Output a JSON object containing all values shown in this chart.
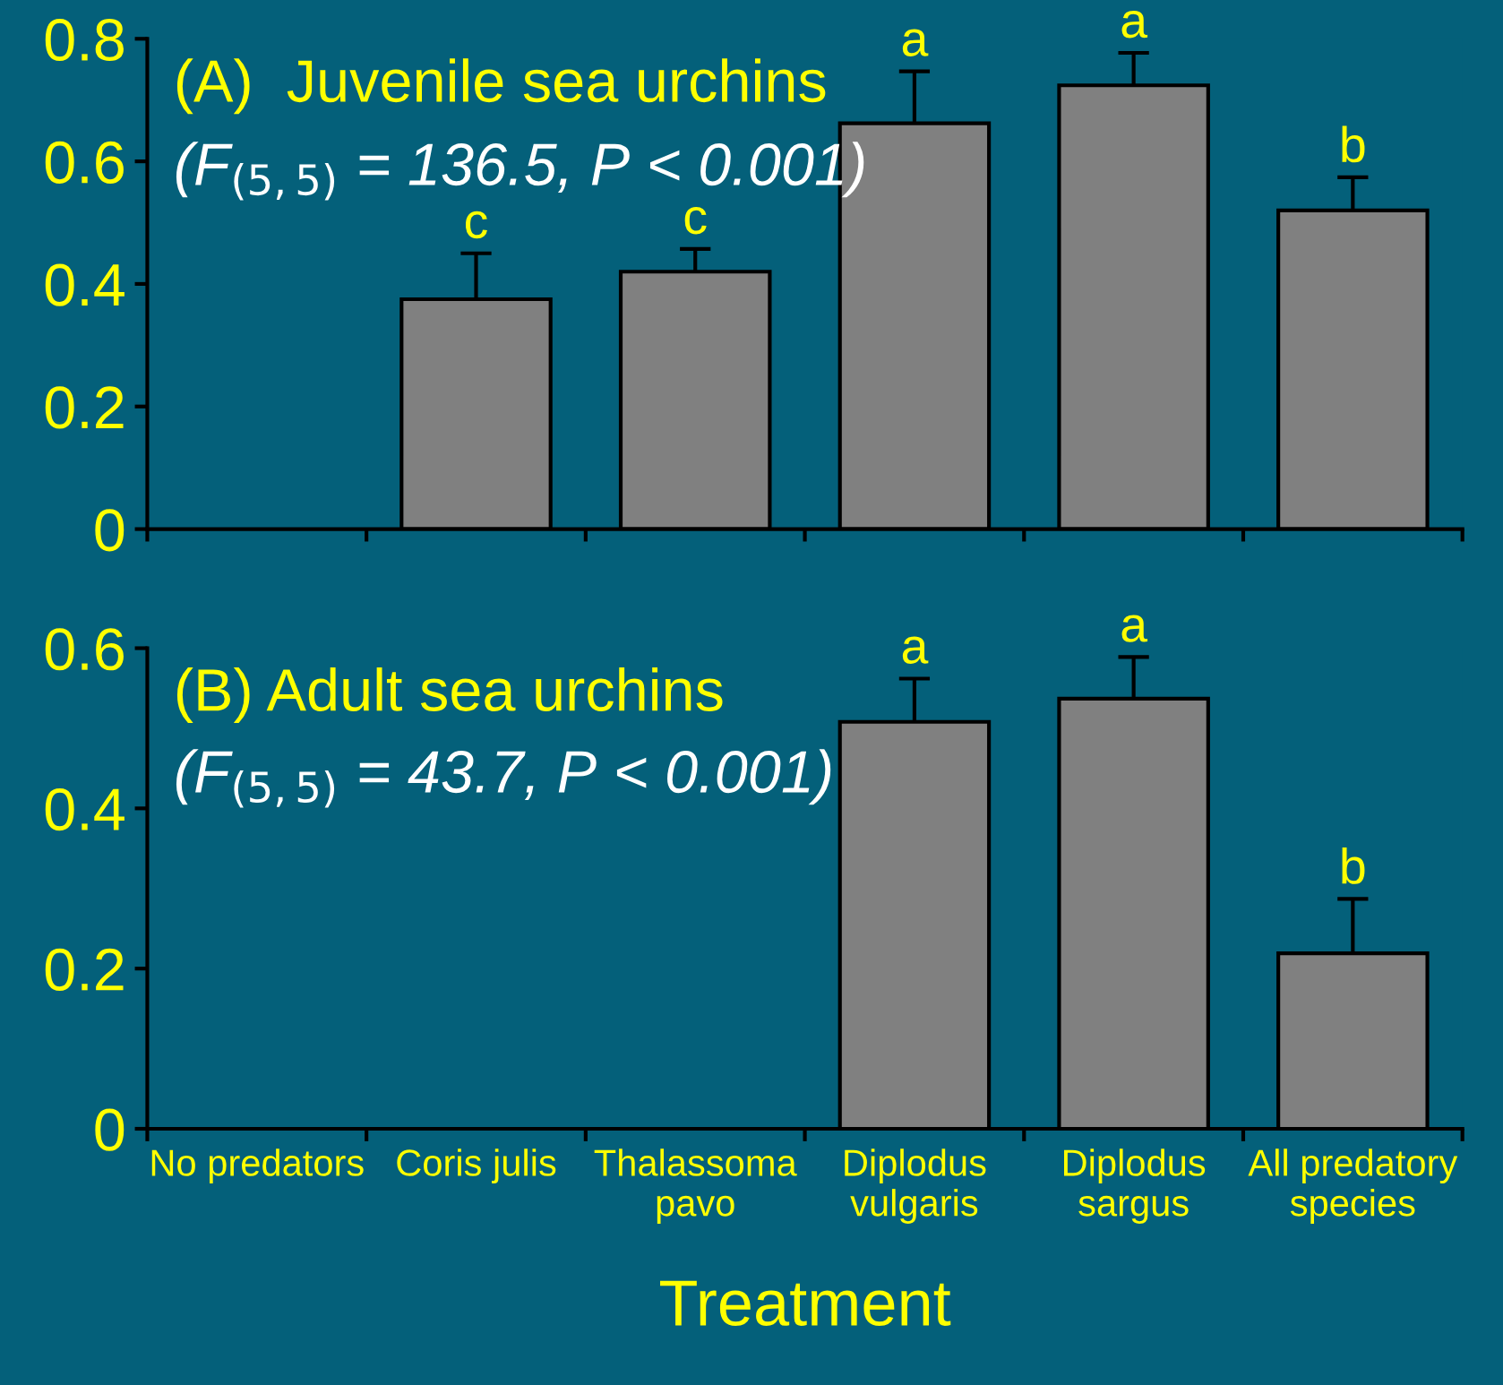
{
  "chart_data": [
    {
      "type": "bar",
      "title": "(A)  Juvenile sea urchins",
      "subtitle": "(F$_{(5,5)}$ = 136.5, P < 0.001)",
      "categories": [
        "No predators",
        "Coris julis",
        "Thalassoma pavo",
        "Diplodus vulgaris",
        "Diplodus sargus",
        "All predatory species"
      ],
      "values": [
        0,
        0.375,
        0.42,
        0.662,
        0.724,
        0.52
      ],
      "errors": [
        null,
        [
          0.375,
          0.45
        ],
        [
          0.42,
          0.457
        ],
        [
          0.662,
          0.747
        ],
        [
          0.724,
          0.777
        ],
        [
          0.52,
          0.574
        ]
      ],
      "color": "#808080",
      "ylim": [
        0,
        0.8
      ],
      "yticks": [
        0,
        0.2,
        0.4,
        0.6,
        0.8
      ],
      "tick_labels": "y",
      "grid": false,
      "annotations": [
        {
          "text": "c",
          "x": "Coris julis",
          "y": 0.45
        },
        {
          "text": "c",
          "x": "Thalassoma pavo",
          "y": 0.457
        },
        {
          "text": "a",
          "x": "Diplodus vulgaris",
          "y": 0.747
        },
        {
          "text": "a",
          "x": "Diplodus sargus",
          "y": 0.777
        },
        {
          "text": "b",
          "x": "All predatory species",
          "y": 0.574
        }
      ]
    },
    {
      "type": "bar",
      "title": "(B) Adult sea urchins",
      "subtitle": "(F$_{(5,5)}$ = 43.7, P < 0.001)",
      "xlabel": "Treatment",
      "categories": [
        "No predators",
        "Coris julis",
        "Thalassoma pavo",
        "Diplodus vulgaris",
        "Diplodus sargus",
        "All predatory species"
      ],
      "values": [
        0,
        0,
        0,
        0.508,
        0.537,
        0.219
      ],
      "errors": [
        null,
        null,
        null,
        [
          0.508,
          0.562
        ],
        [
          0.537,
          0.589
        ],
        [
          0.219,
          0.287
        ]
      ],
      "color": "#808080",
      "ylim": [
        0,
        0.6
      ],
      "yticks": [
        0,
        0.2,
        0.4,
        0.6
      ],
      "grid": false,
      "annotations": [
        {
          "text": "a",
          "x": "Diplodus vulgaris",
          "y": 0.562
        },
        {
          "text": "a",
          "x": "Diplodus sargus",
          "y": 0.589
        },
        {
          "text": "b",
          "x": "All predatory species",
          "y": 0.287
        }
      ]
    }
  ]
}
